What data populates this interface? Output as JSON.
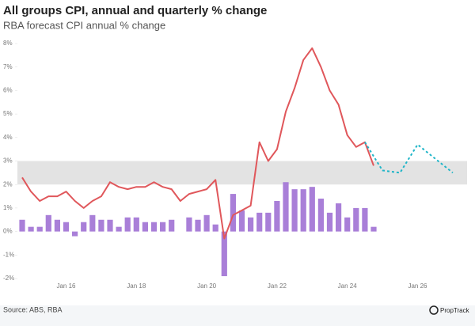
{
  "chart_data": {
    "type": "combo",
    "title": "All groups CPI, annual and quarterly % change",
    "subtitle": "RBA forecast CPI annual % change",
    "source": "Source: ABS, RBA",
    "brand": "PropTrack",
    "categories": [
      null,
      null,
      null,
      null,
      null,
      "Jan 16",
      null,
      null,
      null,
      null,
      null,
      null,
      null,
      "Jan 18",
      null,
      null,
      null,
      null,
      null,
      null,
      null,
      "Jan 20",
      null,
      null,
      null,
      null,
      null,
      null,
      null,
      "Jan 22",
      null,
      null,
      null,
      null,
      null,
      null,
      null,
      "Jan 24",
      null,
      null,
      null,
      null,
      null,
      null,
      null,
      "Jan 26",
      null,
      null,
      null,
      null
    ],
    "ylim": [
      -2,
      8
    ],
    "yticks": [
      {
        "value": -2,
        "label": "-2%"
      },
      {
        "value": -1,
        "label": "-1%"
      },
      {
        "value": 0,
        "label": "0%"
      },
      {
        "value": 1,
        "label": "1%"
      },
      {
        "value": 2,
        "label": "2%"
      },
      {
        "value": 3,
        "label": "3%"
      },
      {
        "value": 4,
        "label": "4%"
      },
      {
        "value": 5,
        "label": "5%"
      },
      {
        "value": 6,
        "label": "6%"
      },
      {
        "value": 7,
        "label": "7%"
      },
      {
        "value": 8,
        "label": "8%"
      }
    ],
    "target_band": [
      2,
      3
    ],
    "band_color": "#e3e3e3",
    "series": [
      {
        "type": "bar",
        "color": "#a97fd8",
        "values": [
          0.5,
          0.2,
          0.2,
          0.7,
          0.5,
          0.4,
          -0.2,
          0.4,
          0.7,
          0.5,
          0.5,
          0.2,
          0.6,
          0.6,
          0.4,
          0.4,
          0.4,
          0.5,
          0.0,
          0.6,
          0.5,
          0.7,
          0.3,
          -1.9,
          1.6,
          0.9,
          0.6,
          0.8,
          0.8,
          1.3,
          2.1,
          1.8,
          1.8,
          1.9,
          1.4,
          0.8,
          1.2,
          0.6,
          1.0,
          1.0,
          0.2,
          null,
          null,
          null,
          null,
          null,
          null,
          null,
          null,
          null
        ]
      },
      {
        "type": "line",
        "color": "#e0575b",
        "dashed": false,
        "values": [
          2.3,
          1.7,
          1.3,
          1.5,
          1.5,
          1.7,
          1.3,
          1.0,
          1.3,
          1.5,
          2.1,
          1.9,
          1.8,
          1.9,
          1.9,
          2.1,
          1.9,
          1.8,
          1.3,
          1.6,
          1.7,
          1.8,
          2.2,
          -0.3,
          0.7,
          0.9,
          1.1,
          3.8,
          3.0,
          3.5,
          5.1,
          6.1,
          7.3,
          7.8,
          7.0,
          6.0,
          5.4,
          4.1,
          3.6,
          3.8,
          2.8,
          null,
          null,
          null,
          null,
          null,
          null,
          null,
          null,
          null
        ]
      },
      {
        "type": "line",
        "color": "#1fb5c8",
        "dashed": true,
        "values": [
          null,
          null,
          null,
          null,
          null,
          null,
          null,
          null,
          null,
          null,
          null,
          null,
          null,
          null,
          null,
          null,
          null,
          null,
          null,
          null,
          null,
          null,
          null,
          null,
          null,
          null,
          null,
          null,
          null,
          null,
          null,
          null,
          null,
          null,
          null,
          null,
          null,
          null,
          null,
          3.8,
          3.2,
          2.6,
          2.55,
          2.5,
          3.1,
          3.7,
          3.4,
          3.1,
          2.8,
          2.5
        ]
      }
    ]
  }
}
